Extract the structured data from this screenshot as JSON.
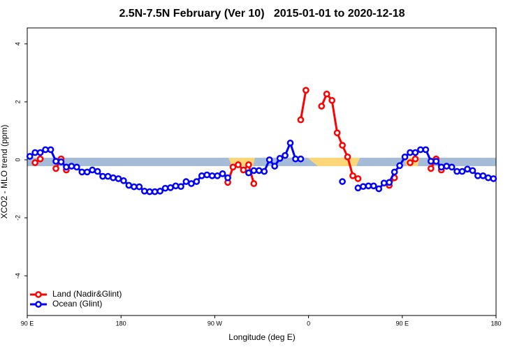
{
  "chart_data": {
    "type": "line",
    "title": "2.5N-7.5N February (Ver 10)   2015-01-01 to 2020-12-18",
    "x_label": "Longitude (deg E)",
    "y_label": "XCO2 - MLO trend (ppm)",
    "xlim": [
      90,
      540
    ],
    "ylim": [
      -5.37,
      4.55
    ],
    "xticks": [
      {
        "value": 90,
        "label": "90 E"
      },
      {
        "value": 180,
        "label": "180"
      },
      {
        "value": 270,
        "label": "90 W"
      },
      {
        "value": 360,
        "label": "0"
      },
      {
        "value": 450,
        "label": "90 E"
      },
      {
        "value": 540,
        "label": "180"
      }
    ],
    "yticks": [
      -4,
      -2,
      0,
      2,
      4
    ],
    "legend": "bottom-left",
    "x": [
      92.5,
      97.5,
      102.5,
      107.5,
      112.5,
      117.5,
      122.5,
      127.5,
      132.5,
      137.5,
      142.5,
      147.5,
      152.5,
      157.5,
      162.5,
      167.5,
      172.5,
      177.5,
      182.5,
      187.5,
      192.5,
      197.5,
      202.5,
      207.5,
      212.5,
      217.5,
      222.5,
      227.5,
      232.5,
      237.5,
      242.5,
      247.5,
      252.5,
      257.5,
      262.5,
      267.5,
      272.5,
      277.5,
      282.5,
      287.5,
      292.5,
      297.5,
      302.5,
      307.5,
      312.5,
      317.5,
      322.5,
      327.5,
      332.5,
      337.5,
      342.5,
      347.5,
      352.5,
      357.5,
      362.5,
      367.5,
      372.5,
      377.5,
      382.5,
      387.5,
      392.5,
      397.5,
      402.5,
      407.5,
      412.5,
      417.5,
      422.5,
      427.5,
      432.5,
      437.5,
      442.5,
      447.5,
      452.5,
      457.5,
      462.5,
      467.5,
      472.5,
      477.5,
      482.5,
      487.5,
      492.5,
      497.5,
      502.5,
      507.5,
      512.5,
      517.5,
      522.5,
      527.5,
      532.5,
      537.5
    ],
    "series": [
      {
        "name": "Land (Nadir&Glint)",
        "color": "#ff0000",
        "values": [
          null,
          -0.1,
          0.03,
          null,
          null,
          -0.3,
          0.03,
          -0.35,
          null,
          null,
          null,
          null,
          null,
          null,
          null,
          null,
          null,
          null,
          null,
          null,
          null,
          null,
          null,
          null,
          null,
          null,
          null,
          null,
          null,
          null,
          null,
          null,
          null,
          null,
          null,
          null,
          null,
          null,
          -0.78,
          -0.25,
          -0.17,
          -0.35,
          -0.17,
          -0.82,
          null,
          null,
          null,
          null,
          null,
          null,
          null,
          null,
          1.38,
          2.4,
          null,
          null,
          1.85,
          2.27,
          2.05,
          0.93,
          0.5,
          0.1,
          -0.55,
          -0.65,
          null,
          null,
          null,
          null,
          null,
          -0.88,
          -0.62,
          null,
          null,
          -0.1,
          0.03,
          null,
          null,
          -0.3,
          0.03,
          -0.35,
          null,
          null,
          null,
          null,
          null,
          null,
          null,
          null,
          null,
          null
        ]
      },
      {
        "name": "Ocean (Glint)",
        "color": "#0000ff",
        "values": [
          0.12,
          0.25,
          0.25,
          0.35,
          0.35,
          -0.05,
          -0.07,
          -0.25,
          -0.22,
          -0.25,
          -0.42,
          -0.42,
          -0.35,
          -0.4,
          -0.57,
          -0.57,
          -0.62,
          -0.65,
          -0.72,
          -0.88,
          -0.93,
          -0.93,
          -1.08,
          -1.1,
          -1.1,
          -1.08,
          -0.98,
          -0.96,
          -0.9,
          -0.92,
          -0.75,
          -0.82,
          -0.75,
          -0.55,
          -0.52,
          -0.55,
          -0.55,
          -0.48,
          -0.62,
          null,
          null,
          null,
          -0.45,
          -0.37,
          -0.37,
          -0.4,
          0.0,
          -0.22,
          0.05,
          0.15,
          0.58,
          0.03,
          0.03,
          null,
          null,
          null,
          null,
          null,
          null,
          null,
          -0.75,
          null,
          null,
          -0.97,
          -0.92,
          -0.9,
          -0.9,
          -1.0,
          -0.8,
          -0.78,
          -0.42,
          -0.2,
          0.1,
          0.25,
          0.25,
          0.35,
          0.35,
          -0.05,
          -0.05,
          -0.25,
          -0.22,
          -0.25,
          -0.4,
          -0.4,
          -0.32,
          -0.37,
          -0.55,
          -0.55,
          -0.62,
          -0.65
        ]
      }
    ]
  }
}
